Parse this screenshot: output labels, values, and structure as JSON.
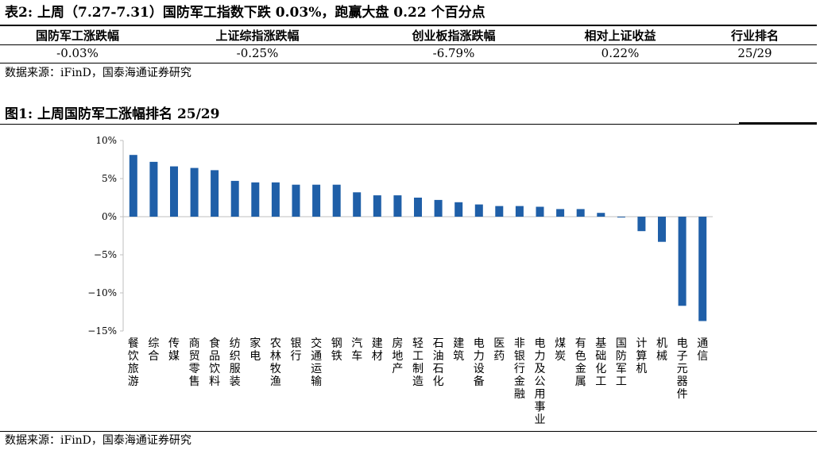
{
  "table_caption": "表2:  上周（7.27-7.31）国防军工指数下跌 0.03%，跑赢大盘 0.22 个百分点",
  "table": {
    "headers": [
      "国防军工涨跌幅",
      "上证综指涨跌幅",
      "创业板指涨跌幅",
      "相对上证收益",
      "行业排名"
    ],
    "values": [
      "-0.03%",
      "-0.25%",
      "-6.79%",
      "0.22%",
      "25/29"
    ]
  },
  "table_source": "数据来源：iFinD，国泰海通证券研究",
  "chart_caption": "图1:  上周国防军工涨幅排名 25/29",
  "chart_source": "数据来源：iFinD，国泰海通证券研究",
  "colors": {
    "bar": "#1f5fa8",
    "axis": "#bfbfbf"
  },
  "chart_data": {
    "type": "bar",
    "title": "上周国防军工涨幅排名 25/29",
    "xlabel": "",
    "ylabel": "",
    "ylim": [
      -15,
      10
    ],
    "yticks": [
      10,
      5,
      0,
      -5,
      -10,
      -15
    ],
    "ytick_labels": [
      "10%",
      "5%",
      "0%",
      "−5%",
      "−10%",
      "−15%"
    ],
    "grid": false,
    "categories": [
      "餐饮旅游",
      "综合",
      "传媒",
      "商贸零售",
      "食品饮料",
      "纺织服装",
      "家电",
      "农林牧渔",
      "银行",
      "交通运输",
      "钢铁",
      "汽车",
      "建材",
      "房地产",
      "轻工制造",
      "石油石化",
      "建筑",
      "电力设备",
      "医药",
      "非银行金融",
      "电力及公用事业",
      "煤炭",
      "有色金属",
      "基础化工",
      "国防军工",
      "计算机",
      "机械",
      "电子元器件",
      "通信"
    ],
    "values": [
      8.1,
      7.2,
      6.6,
      6.4,
      6.1,
      4.7,
      4.5,
      4.5,
      4.2,
      4.2,
      4.2,
      3.2,
      2.8,
      2.8,
      2.5,
      2.2,
      1.9,
      1.6,
      1.4,
      1.4,
      1.3,
      1.0,
      1.0,
      0.5,
      -0.03,
      -1.9,
      -3.3,
      -11.7,
      -13.7
    ]
  }
}
